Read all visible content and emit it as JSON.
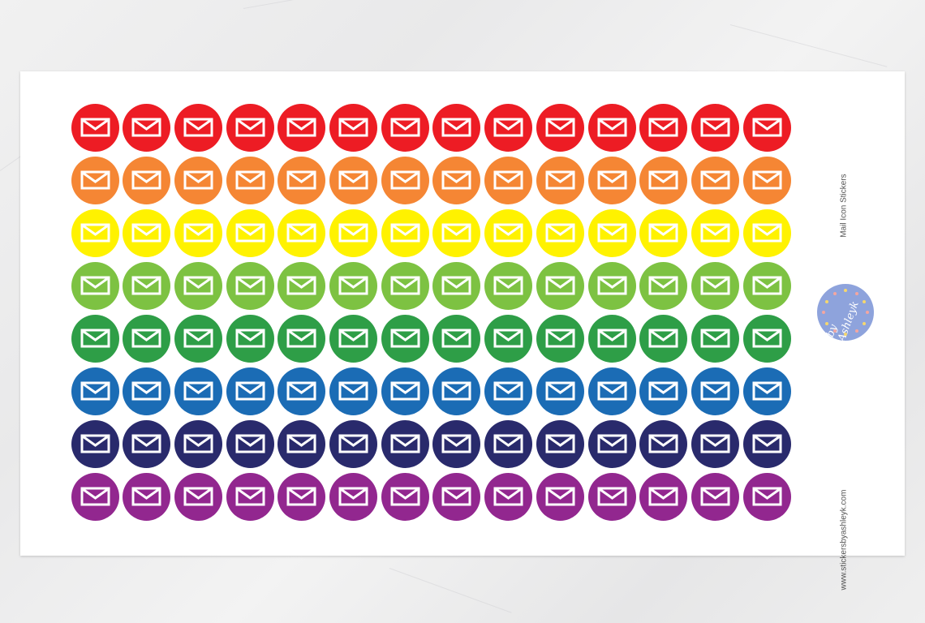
{
  "sheet": {
    "title": "Mail Icon Stickers",
    "website": "www.stickersbyashleyk.com",
    "logo_text": "by Ashleyk"
  },
  "stickers": {
    "icon": "envelope-icon",
    "columns": 14,
    "icon_color": "#ffffff",
    "rows": [
      {
        "color_name": "red",
        "color": "#ed1c24"
      },
      {
        "color_name": "orange",
        "color": "#f58634"
      },
      {
        "color_name": "yellow",
        "color": "#fff200"
      },
      {
        "color_name": "light-green",
        "color": "#7dc242"
      },
      {
        "color_name": "green",
        "color": "#2e9e47"
      },
      {
        "color_name": "blue",
        "color": "#1b6cb5"
      },
      {
        "color_name": "navy",
        "color": "#292a6c"
      },
      {
        "color_name": "purple",
        "color": "#92278f"
      }
    ]
  },
  "background": {
    "color": "#eeeeee"
  }
}
